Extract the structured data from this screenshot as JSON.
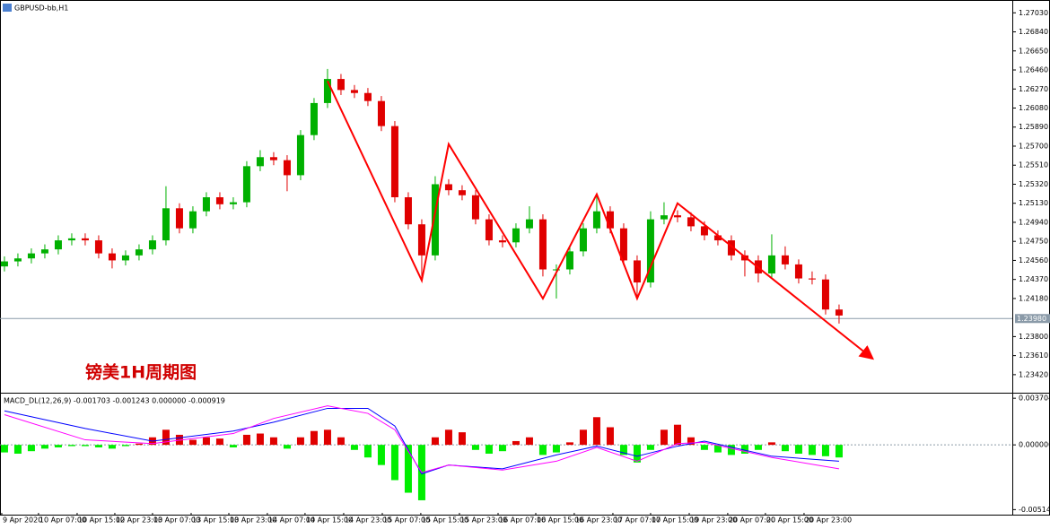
{
  "chart_data": [
    {
      "type": "candlestick",
      "title": "GBPUSD-bb,H1",
      "annotation": "镑美1H周期图",
      "up_color": "#00b000",
      "down_color": "#e00000",
      "open": [
        1.245,
        1.2455,
        1.2458,
        1.2463,
        1.2467,
        1.2476,
        1.2478,
        1.2476,
        1.2463,
        1.2456,
        1.2461,
        1.2467,
        1.2476,
        1.2508,
        1.2488,
        1.2505,
        1.2519,
        1.2512,
        1.2514,
        1.255,
        1.2559,
        1.2556,
        1.2541,
        1.2581,
        1.2613,
        1.2637,
        1.2626,
        1.2623,
        1.2615,
        1.259,
        1.2519,
        1.2492,
        1.2461,
        1.2532,
        1.2526,
        1.2521,
        1.2497,
        1.2476,
        1.2474,
        1.2488,
        1.2497,
        1.2447,
        1.2447,
        1.2465,
        1.2488,
        1.2505,
        1.2488,
        1.2456,
        1.2434,
        1.2497,
        1.2501,
        1.2499,
        1.249,
        1.2481,
        1.2476,
        1.2461,
        1.2456,
        1.2443,
        1.2461,
        1.2452,
        1.2438,
        1.2437,
        1.2407
      ],
      "high": [
        1.246,
        1.2463,
        1.2468,
        1.2472,
        1.2481,
        1.2483,
        1.2483,
        1.2481,
        1.2468,
        1.2466,
        1.2472,
        1.2481,
        1.253,
        1.2513,
        1.251,
        1.2524,
        1.2524,
        1.2519,
        1.2555,
        1.2566,
        1.2564,
        1.2561,
        1.2586,
        1.2618,
        1.2647,
        1.2642,
        1.2631,
        1.2628,
        1.262,
        1.2595,
        1.2524,
        1.2497,
        1.254,
        1.2537,
        1.2531,
        1.2526,
        1.2502,
        1.2481,
        1.2493,
        1.251,
        1.2502,
        1.2452,
        1.247,
        1.2493,
        1.252,
        1.251,
        1.2493,
        1.2461,
        1.2505,
        1.2514,
        1.2506,
        1.2504,
        1.2495,
        1.2486,
        1.2481,
        1.2466,
        1.2461,
        1.2482,
        1.247,
        1.2457,
        1.2445,
        1.2442,
        1.2412
      ],
      "low": [
        1.2445,
        1.245,
        1.2453,
        1.2458,
        1.2462,
        1.2471,
        1.2471,
        1.2458,
        1.2448,
        1.2451,
        1.2456,
        1.2462,
        1.2471,
        1.2483,
        1.2483,
        1.25,
        1.2507,
        1.2507,
        1.2509,
        1.2545,
        1.2551,
        1.2525,
        1.2536,
        1.2576,
        1.2608,
        1.2621,
        1.2618,
        1.261,
        1.2585,
        1.2514,
        1.2487,
        1.2436,
        1.2456,
        1.2521,
        1.2516,
        1.2492,
        1.2471,
        1.2469,
        1.2469,
        1.2483,
        1.244,
        1.2418,
        1.2442,
        1.246,
        1.2483,
        1.2483,
        1.2451,
        1.2418,
        1.2429,
        1.2492,
        1.2494,
        1.2485,
        1.2476,
        1.2471,
        1.2456,
        1.244,
        1.2434,
        1.2438,
        1.2447,
        1.2433,
        1.2432,
        1.2402,
        1.2393
      ],
      "close": [
        1.2455,
        1.2458,
        1.2463,
        1.2467,
        1.2476,
        1.2478,
        1.2476,
        1.2463,
        1.2456,
        1.2461,
        1.2467,
        1.2476,
        1.2508,
        1.2488,
        1.2505,
        1.2519,
        1.2512,
        1.2514,
        1.255,
        1.2559,
        1.2556,
        1.2541,
        1.2581,
        1.2613,
        1.2637,
        1.2626,
        1.2623,
        1.2615,
        1.259,
        1.2519,
        1.2492,
        1.2461,
        1.2532,
        1.2526,
        1.2521,
        1.2497,
        1.2476,
        1.2474,
        1.2488,
        1.2497,
        1.2447,
        1.2447,
        1.2465,
        1.2488,
        1.2505,
        1.2488,
        1.2456,
        1.2434,
        1.2497,
        1.2501,
        1.2499,
        1.249,
        1.2481,
        1.2476,
        1.2461,
        1.2456,
        1.2443,
        1.2461,
        1.2452,
        1.2438,
        1.2437,
        1.2407,
        1.2401
      ],
      "zigzag": {
        "color": "#ff0000",
        "x": [
          24,
          31,
          33,
          40,
          44,
          47,
          50,
          64.5
        ],
        "values": [
          1.2635,
          1.2436,
          1.2572,
          1.2418,
          1.2522,
          1.2418,
          1.2513,
          1.2358
        ]
      },
      "current_price": {
        "value": 1.2398,
        "label": "1.23980"
      },
      "xlim": [
        -0.33,
        74.87
      ],
      "ylim": [
        1.2324,
        1.2714
      ],
      "yticks": [
        {
          "value": 1.2703,
          "label": "1.27030"
        },
        {
          "value": 1.2684,
          "label": "1.26840"
        },
        {
          "value": 1.2665,
          "label": "1.26650"
        },
        {
          "value": 1.2646,
          "label": "1.26460"
        },
        {
          "value": 1.2627,
          "label": "1.26270"
        },
        {
          "value": 1.2608,
          "label": "1.26080"
        },
        {
          "value": 1.2589,
          "label": "1.25890"
        },
        {
          "value": 1.257,
          "label": "1.25700"
        },
        {
          "value": 1.2551,
          "label": "1.25510"
        },
        {
          "value": 1.2532,
          "label": "1.25320"
        },
        {
          "value": 1.2513,
          "label": "1.25130"
        },
        {
          "value": 1.2494,
          "label": "1.24940"
        },
        {
          "value": 1.2475,
          "label": "1.24750"
        },
        {
          "value": 1.2456,
          "label": "1.24560"
        },
        {
          "value": 1.2437,
          "label": "1.24370"
        },
        {
          "value": 1.2418,
          "label": "1.24180"
        },
        {
          "value": 1.238,
          "label": "1.23800"
        },
        {
          "value": 1.2361,
          "label": "1.23610"
        },
        {
          "value": 1.2342,
          "label": "1.23420"
        }
      ],
      "xticks": [
        {
          "value": -0.2,
          "label": "9 Apr 2020"
        },
        {
          "value": 2.53,
          "label": "10 Apr 07:00"
        },
        {
          "value": 5.4,
          "label": "10 Apr 15:00"
        },
        {
          "value": 8.2,
          "label": "12 Apr 23:00"
        },
        {
          "value": 11,
          "label": "13 Apr 07:00"
        },
        {
          "value": 13.87,
          "label": "13 Apr 15:00"
        },
        {
          "value": 16.67,
          "label": "13 Apr 23:00"
        },
        {
          "value": 19.53,
          "label": "14 Apr 07:00"
        },
        {
          "value": 22.33,
          "label": "14 Apr 15:00"
        },
        {
          "value": 25.2,
          "label": "14 Apr 23:00"
        },
        {
          "value": 28.07,
          "label": "15 Apr 07:00"
        },
        {
          "value": 30.93,
          "label": "15 Apr 15:00"
        },
        {
          "value": 33.8,
          "label": "15 Apr 23:00"
        },
        {
          "value": 36.67,
          "label": "16 Apr 07:00"
        },
        {
          "value": 39.47,
          "label": "16 Apr 15:00"
        },
        {
          "value": 42.33,
          "label": "16 Apr 23:00"
        },
        {
          "value": 45.2,
          "label": "17 Apr 07:00"
        },
        {
          "value": 48,
          "label": "17 Apr 15:00"
        },
        {
          "value": 50.87,
          "label": "19 Apr 23:00"
        },
        {
          "value": 53.73,
          "label": "20 Apr 07:00"
        },
        {
          "value": 56.53,
          "label": "20 Apr 15:00"
        },
        {
          "value": 59.4,
          "label": "20 Apr 23:00"
        }
      ]
    },
    {
      "type": "macd",
      "title": "MACD_DL(12,26,9) -0.001703 -0.001243 0.000000 -0.000919",
      "histogram": {
        "pos_color": "#e00000",
        "neg_color": "#00ee00",
        "values": [
          -0.0006,
          -0.0007,
          -0.0005,
          -0.0003,
          -0.0002,
          -0.0001,
          -0.0001,
          -0.0002,
          -0.0003,
          -0.0001,
          0.0001,
          0.0006,
          0.0012,
          0.0008,
          0.0004,
          0.0006,
          0.0005,
          -0.0002,
          0.0008,
          0.0009,
          0.0006,
          -0.0003,
          0.0006,
          0.0011,
          0.0012,
          0.0006,
          -0.0004,
          -0.001,
          -0.0016,
          -0.0028,
          -0.0038,
          -0.0044,
          0.0006,
          0.0012,
          0.001,
          -0.0004,
          -0.0007,
          -0.0005,
          0.0003,
          0.0006,
          -0.0008,
          -0.0006,
          0.0002,
          0.0012,
          0.0022,
          0.0014,
          -0.0008,
          -0.0014,
          -0.0004,
          0.0012,
          0.0016,
          0.0006,
          -0.0004,
          -0.0006,
          -0.0008,
          -0.0007,
          -0.0004,
          0.0002,
          -0.0005,
          -0.0007,
          -0.0008,
          -0.0009,
          -0.001
        ]
      },
      "series": [
        {
          "color": "#0000ff",
          "x": [
            0,
            6,
            11,
            17,
            20,
            24,
            27,
            29,
            31,
            33,
            37,
            41,
            44,
            47,
            50,
            52,
            57,
            62
          ],
          "values": [
            0.0027,
            0.0013,
            0.0003,
            0.0011,
            0.0018,
            0.0029,
            0.0029,
            0.0015,
            -0.0023,
            -0.0016,
            -0.0019,
            -0.0008,
            -0.0001,
            -0.0009,
            -0.0001,
            0.0003,
            -0.0009,
            -0.0013
          ]
        },
        {
          "color": "#ff00ff",
          "x": [
            0,
            6,
            11,
            17,
            20,
            24,
            27,
            29,
            31,
            33,
            37,
            41,
            44,
            47,
            50,
            52,
            57,
            62
          ],
          "values": [
            0.0024,
            0.0004,
            0.0001,
            0.0009,
            0.0021,
            0.0031,
            0.0025,
            0.0012,
            -0.0022,
            -0.0016,
            -0.002,
            -0.0013,
            -0.0002,
            -0.0013,
            0.0001,
            0.0002,
            -0.001,
            -0.0019
          ]
        }
      ],
      "ylim": [
        -0.0054,
        0.004
      ],
      "yticks": [
        {
          "value": 0.003704,
          "label": "0.003704"
        },
        {
          "value": 0,
          "label": "0.000000"
        },
        {
          "value": -0.005142,
          "label": "-0.005142"
        }
      ]
    }
  ]
}
